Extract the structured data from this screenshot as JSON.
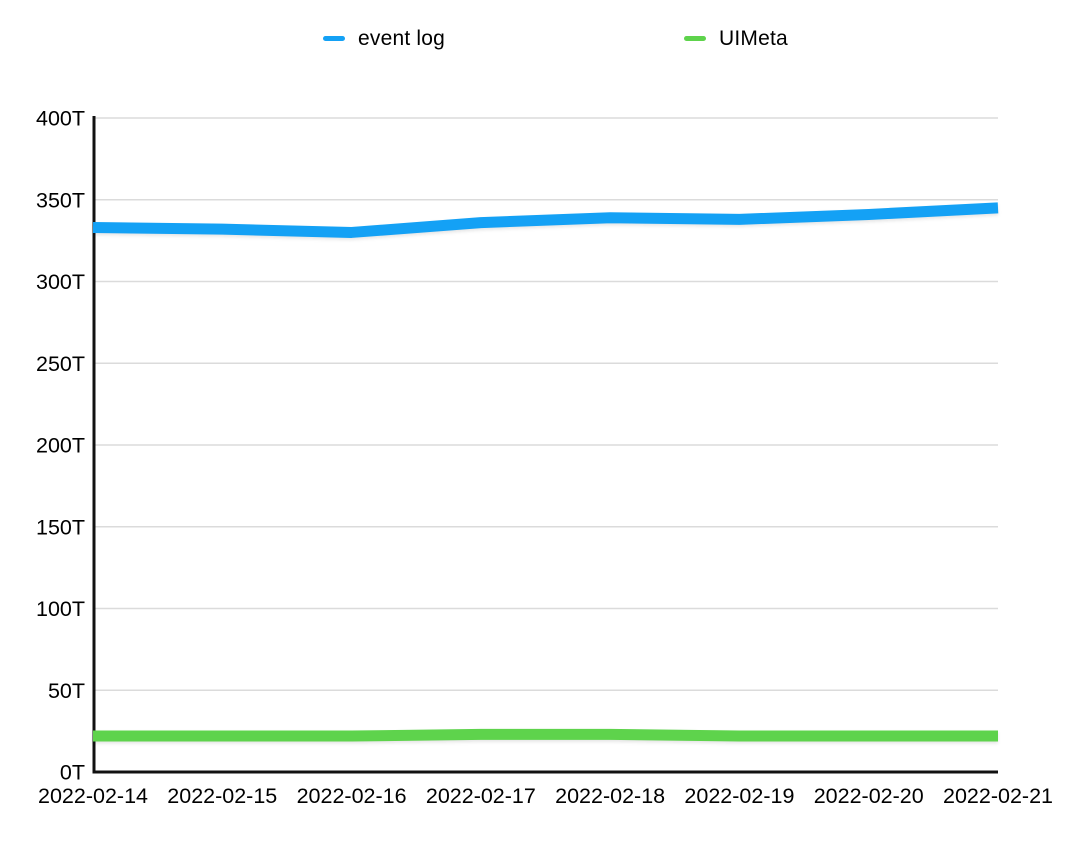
{
  "legend": {
    "items": [
      {
        "label": "event log",
        "color": "#14A1F5"
      },
      {
        "label": "UIMeta",
        "color": "#5ED34C"
      }
    ]
  },
  "chart_data": {
    "type": "line",
    "title": "",
    "xlabel": "",
    "ylabel": "",
    "unit": "T",
    "x": [
      "2022-02-14",
      "2022-02-15",
      "2022-02-16",
      "2022-02-17",
      "2022-02-18",
      "2022-02-19",
      "2022-02-20",
      "2022-02-21"
    ],
    "series": [
      {
        "name": "event log",
        "color": "#14A1F5",
        "values": [
          333,
          332,
          330,
          336,
          339,
          338,
          341,
          345
        ]
      },
      {
        "name": "UIMeta",
        "color": "#5ED34C",
        "values": [
          22,
          22,
          22,
          23,
          23,
          22,
          22,
          22
        ]
      }
    ],
    "ylim": [
      0,
      400
    ],
    "ytick_step": 50,
    "ytick_labels": [
      "0T",
      "50T",
      "100T",
      "150T",
      "200T",
      "250T",
      "300T",
      "350T",
      "400T"
    ],
    "grid": true,
    "legend_position": "top"
  },
  "style": {
    "grid_color": "#dbdbdb",
    "axis_color": "#111111",
    "label_color": "#000000",
    "background": "#ffffff"
  }
}
